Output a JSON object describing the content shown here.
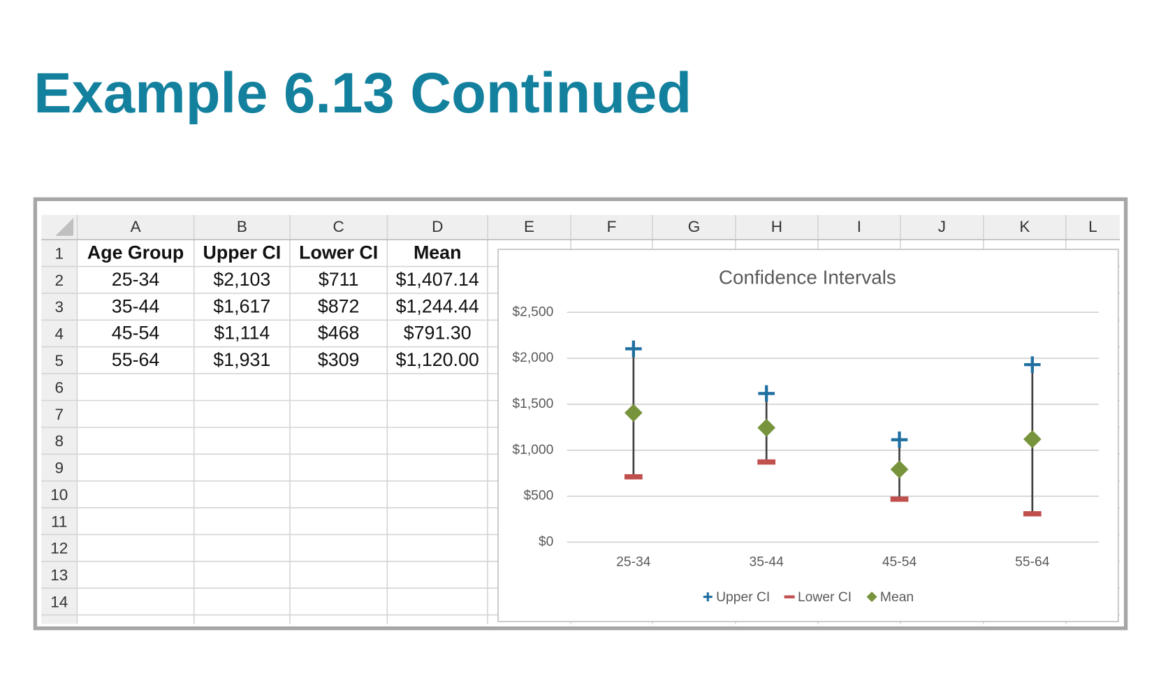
{
  "title": "Example 6.13 Continued",
  "sheet": {
    "columns": [
      "A",
      "B",
      "C",
      "D",
      "E",
      "F",
      "G",
      "H",
      "I",
      "J",
      "K",
      "L"
    ],
    "row_numbers": [
      1,
      2,
      3,
      4,
      5,
      6,
      7,
      8,
      9,
      10,
      11,
      12,
      13,
      14
    ],
    "rows": [
      [
        "Age Group",
        "Upper CI",
        "Lower CI",
        "Mean"
      ],
      [
        "25-34",
        "$2,103",
        "$711",
        "$1,407.14"
      ],
      [
        "35-44",
        "$1,617",
        "$872",
        "$1,244.44"
      ],
      [
        "45-54",
        "$1,114",
        "$468",
        "$791.30"
      ],
      [
        "55-64",
        "$1,931",
        "$309",
        "$1,120.00"
      ]
    ]
  },
  "chart_data": {
    "type": "scatter",
    "title": "Confidence Intervals",
    "categories": [
      "25-34",
      "35-44",
      "45-54",
      "55-64"
    ],
    "series": [
      {
        "name": "Upper CI",
        "color": "#1f6fa0",
        "marker": "plus",
        "values": [
          2103,
          1617,
          1114,
          1931
        ]
      },
      {
        "name": "Lower CI",
        "color": "#c0504d",
        "marker": "dash",
        "values": [
          711,
          872,
          468,
          309
        ]
      },
      {
        "name": "Mean",
        "color": "#77933c",
        "marker": "diamond",
        "values": [
          1407.14,
          1244.44,
          791.3,
          1120.0
        ]
      }
    ],
    "high_low_lines": true,
    "ylim": [
      0,
      2500
    ],
    "yticks": [
      {
        "value": 0,
        "label": "$0"
      },
      {
        "value": 500,
        "label": "$500"
      },
      {
        "value": 1000,
        "label": "$1,000"
      },
      {
        "value": 1500,
        "label": "$1,500"
      },
      {
        "value": 2000,
        "label": "$2,000"
      },
      {
        "value": 2500,
        "label": "$2,500"
      }
    ],
    "grid": true,
    "legend": "bottom"
  }
}
